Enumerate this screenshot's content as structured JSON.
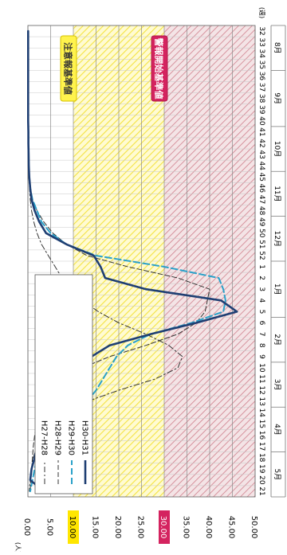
{
  "chart_data": {
    "type": "line",
    "orientation": "rotated-90-clockwise",
    "title": "",
    "ylabel": "(人)",
    "xlabel": "",
    "x_unit_label": "(週)",
    "ylim": [
      0,
      50
    ],
    "y_ticks": [
      "0.00",
      "5.00",
      "10.00",
      "15.00",
      "20.00",
      "25.00",
      "30.00",
      "35.00",
      "40.00",
      "45.00",
      "50.00"
    ],
    "x_weeks": [
      32,
      33,
      34,
      35,
      36,
      37,
      38,
      39,
      40,
      41,
      42,
      43,
      44,
      45,
      46,
      47,
      48,
      49,
      50,
      51,
      52,
      1,
      2,
      3,
      4,
      5,
      6,
      7,
      8,
      9,
      10,
      11,
      12,
      13,
      14,
      15,
      16,
      17,
      18,
      19,
      20,
      21
    ],
    "months": [
      {
        "label": "8月",
        "start": 0,
        "end": 4
      },
      {
        "label": "9月",
        "start": 4,
        "end": 9
      },
      {
        "label": "10月",
        "start": 9,
        "end": 13
      },
      {
        "label": "11月",
        "start": 13,
        "end": 17
      },
      {
        "label": "12月",
        "start": 17,
        "end": 21
      },
      {
        "label": "1月",
        "start": 21,
        "end": 26
      },
      {
        "label": "2月",
        "start": 26,
        "end": 30
      },
      {
        "label": "3月",
        "start": 30,
        "end": 34
      },
      {
        "label": "4月",
        "start": 34,
        "end": 38
      },
      {
        "label": "5月",
        "start": 38,
        "end": 42
      }
    ],
    "zones": {
      "warning": {
        "label": "警報開始基準値",
        "from": 30,
        "to": 50,
        "color": "#c8506a"
      },
      "caution": {
        "label": "注意報基準値",
        "from": 10,
        "to": 30,
        "color": "#ffe84a"
      }
    },
    "series": [
      {
        "name": "H27-H28",
        "color": "#333333",
        "dash": "7,3,2,3",
        "width": 1,
        "values": [
          0.05,
          0.05,
          0.05,
          0.05,
          0.05,
          0.05,
          0.05,
          0.05,
          0.05,
          0.1,
          0.1,
          0.15,
          0.2,
          0.25,
          0.35,
          0.5,
          0.8,
          1.3,
          2.0,
          3.0,
          4.5,
          6.0,
          7.5,
          9.5,
          12.0,
          15.5,
          20.0,
          26.0,
          31.0,
          34.0,
          33.0,
          28.0,
          20.0,
          13.0,
          8.0,
          5.0,
          3.0,
          2.0,
          1.2,
          0.8,
          0.5,
          0.3
        ]
      },
      {
        "name": "H28-H29",
        "color": "#333333",
        "dash": "6,3",
        "width": 1,
        "values": [
          0.05,
          0.05,
          0.05,
          0.05,
          0.05,
          0.05,
          0.05,
          0.05,
          0.05,
          0.1,
          0.1,
          0.15,
          0.2,
          0.3,
          0.5,
          1.0,
          2.0,
          3.5,
          5.5,
          8.5,
          13.0,
          22.0,
          33.0,
          40.0,
          39.5,
          39.0,
          37.0,
          33.0,
          26.0,
          18.0,
          12.0,
          8.0,
          5.5,
          3.5,
          2.5,
          2.0,
          1.5,
          1.2,
          1.0,
          0.8,
          0.6,
          0.5
        ]
      },
      {
        "name": "H29-H30",
        "color": "#2aa1c9",
        "dash": "8,4",
        "width": 2,
        "values": [
          0.05,
          0.05,
          0.05,
          0.05,
          0.05,
          0.05,
          0.05,
          0.05,
          0.05,
          0.1,
          0.1,
          0.15,
          0.2,
          0.3,
          0.5,
          1.0,
          2.0,
          3.0,
          5.0,
          8.5,
          15.0,
          30.0,
          42.0,
          43.0,
          43.5,
          43.0,
          36.0,
          27.0,
          22.0,
          19.5,
          18.0,
          16.5,
          15.0,
          13.0,
          11.0,
          8.0,
          5.0,
          3.0,
          2.0,
          1.5,
          1.0,
          0.5
        ]
      },
      {
        "name": "H30-H31",
        "color": "#1f3f73",
        "dash": "",
        "width": 2.6,
        "values": [
          0.05,
          0.05,
          0.05,
          0.05,
          0.05,
          0.05,
          0.05,
          0.05,
          0.05,
          0.1,
          0.1,
          0.15,
          0.2,
          0.3,
          0.5,
          0.8,
          1.5,
          2.5,
          4.0,
          8.5,
          14.5,
          16.0,
          17.0,
          26.0,
          42.5,
          46.0,
          37.0,
          27.0,
          18.0,
          14.0,
          12.0,
          10.5,
          9.0,
          7.0,
          5.0,
          4.0,
          3.5,
          2.0,
          1.5,
          0.8,
          0.5,
          3.5
        ]
      }
    ]
  }
}
